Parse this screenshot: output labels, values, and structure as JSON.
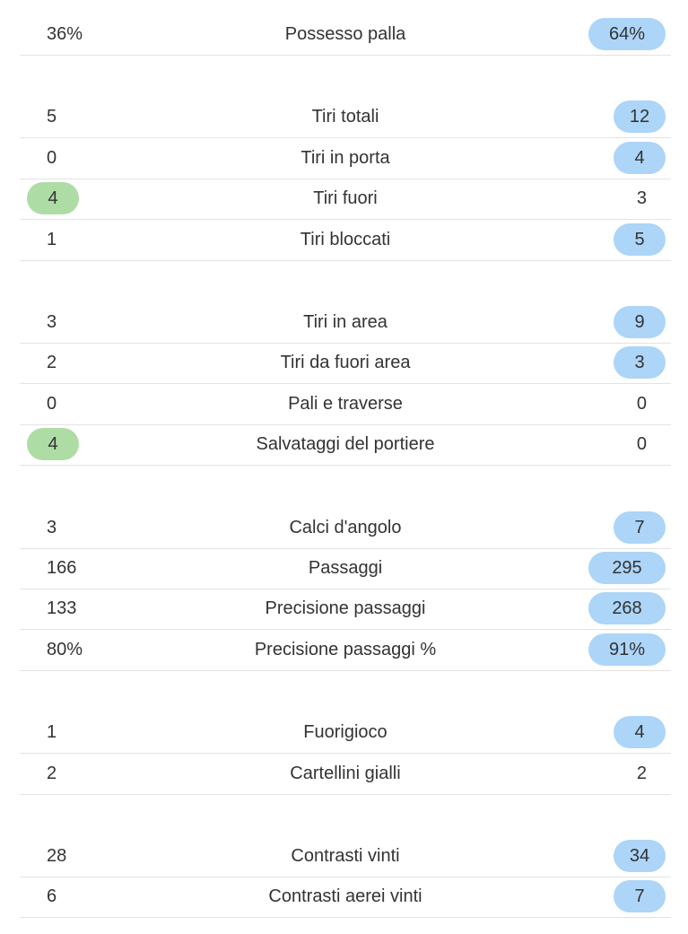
{
  "groups": [
    {
      "rows": [
        {
          "home": "36%",
          "label": "Possesso palla",
          "away": "64%",
          "highlight": "away"
        }
      ]
    },
    {
      "rows": [
        {
          "home": "5",
          "label": "Tiri totali",
          "away": "12",
          "highlight": "away"
        },
        {
          "home": "0",
          "label": "Tiri in porta",
          "away": "4",
          "highlight": "away"
        },
        {
          "home": "4",
          "label": "Tiri fuori",
          "away": "3",
          "highlight": "home"
        },
        {
          "home": "1",
          "label": "Tiri bloccati",
          "away": "5",
          "highlight": "away"
        }
      ]
    },
    {
      "rows": [
        {
          "home": "3",
          "label": "Tiri in area",
          "away": "9",
          "highlight": "away"
        },
        {
          "home": "2",
          "label": "Tiri da fuori area",
          "away": "3",
          "highlight": "away"
        },
        {
          "home": "0",
          "label": "Pali e traverse",
          "away": "0",
          "highlight": null
        },
        {
          "home": "4",
          "label": "Salvataggi del portiere",
          "away": "0",
          "highlight": "home"
        }
      ]
    },
    {
      "rows": [
        {
          "home": "3",
          "label": "Calci d'angolo",
          "away": "7",
          "highlight": "away"
        },
        {
          "home": "166",
          "label": "Passaggi",
          "away": "295",
          "highlight": "away"
        },
        {
          "home": "133",
          "label": "Precisione passaggi",
          "away": "268",
          "highlight": "away"
        },
        {
          "home": "80%",
          "label": "Precisione passaggi %",
          "away": "91%",
          "highlight": "away"
        }
      ]
    },
    {
      "rows": [
        {
          "home": "1",
          "label": "Fuorigioco",
          "away": "4",
          "highlight": "away"
        },
        {
          "home": "2",
          "label": "Cartellini gialli",
          "away": "2",
          "highlight": null
        }
      ]
    },
    {
      "rows": [
        {
          "home": "28",
          "label": "Contrasti vinti",
          "away": "34",
          "highlight": "away"
        },
        {
          "home": "6",
          "label": "Contrasti aerei vinti",
          "away": "7",
          "highlight": "away"
        }
      ]
    }
  ]
}
